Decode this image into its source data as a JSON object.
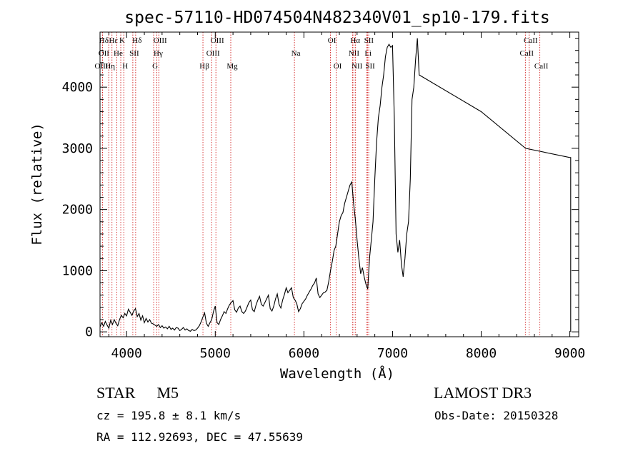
{
  "chart_data": {
    "type": "line",
    "title": "spec-57110-HD074504N482340V01_sp10-179.fits",
    "xlabel": "Wavelength (Å)",
    "ylabel": "Flux (relative)",
    "xlim": [
      3700,
      9100
    ],
    "ylim": [
      -80,
      4900
    ],
    "x_ticks": [
      4000,
      5000,
      6000,
      7000,
      8000,
      9000
    ],
    "x_tick_labels": [
      "4000",
      "5000",
      "6000",
      "7000",
      "8000",
      "9000"
    ],
    "y_ticks": [
      0,
      1000,
      2000,
      3000,
      4000
    ],
    "y_tick_labels": [
      "0",
      "1000",
      "2000",
      "3000",
      "4000"
    ],
    "series": [
      {
        "name": "flux",
        "color": "#000000",
        "x": [
          3700,
          3720,
          3740,
          3760,
          3780,
          3800,
          3820,
          3840,
          3860,
          3880,
          3900,
          3920,
          3940,
          3960,
          3980,
          4000,
          4020,
          4040,
          4060,
          4080,
          4100,
          4120,
          4140,
          4160,
          4180,
          4200,
          4220,
          4240,
          4260,
          4280,
          4300,
          4320,
          4340,
          4360,
          4380,
          4400,
          4420,
          4440,
          4460,
          4480,
          4500,
          4520,
          4540,
          4560,
          4580,
          4600,
          4620,
          4640,
          4660,
          4680,
          4700,
          4720,
          4740,
          4760,
          4780,
          4800,
          4820,
          4840,
          4860,
          4880,
          4900,
          4920,
          4940,
          4960,
          4980,
          5000,
          5020,
          5040,
          5060,
          5080,
          5100,
          5120,
          5140,
          5160,
          5180,
          5200,
          5220,
          5240,
          5260,
          5280,
          5300,
          5320,
          5340,
          5360,
          5380,
          5400,
          5420,
          5440,
          5460,
          5480,
          5500,
          5520,
          5540,
          5560,
          5580,
          5600,
          5620,
          5640,
          5660,
          5680,
          5700,
          5720,
          5740,
          5760,
          5780,
          5800,
          5820,
          5840,
          5860,
          5880,
          5900,
          5920,
          5940,
          5960,
          5980,
          6000,
          6020,
          6040,
          6060,
          6080,
          6100,
          6120,
          6140,
          6160,
          6180,
          6200,
          6220,
          6240,
          6260,
          6280,
          6300,
          6320,
          6340,
          6360,
          6380,
          6400,
          6420,
          6440,
          6460,
          6480,
          6500,
          6520,
          6540,
          6560,
          6580,
          6600,
          6620,
          6640,
          6660,
          6680,
          6700,
          6720,
          6740,
          6760,
          6780,
          6800,
          6820,
          6840,
          6860,
          6880,
          6900,
          6920,
          6940,
          6960,
          6980,
          7000,
          7020,
          7040,
          7060,
          7080,
          7100,
          7120,
          7140,
          7160,
          7180,
          7200,
          7220,
          7240,
          7260,
          7280,
          7300,
          8000,
          8500,
          9000,
          9010,
          9010
        ],
        "y": [
          80,
          150,
          90,
          170,
          110,
          60,
          190,
          120,
          200,
          140,
          100,
          200,
          270,
          230,
          300,
          260,
          370,
          320,
          270,
          340,
          380,
          250,
          300,
          190,
          260,
          150,
          220,
          160,
          200,
          140,
          130,
          110,
          90,
          120,
          70,
          100,
          60,
          80,
          50,
          90,
          40,
          60,
          30,
          70,
          60,
          20,
          40,
          70,
          30,
          50,
          20,
          10,
          40,
          20,
          30,
          60,
          100,
          160,
          240,
          310,
          140,
          90,
          150,
          200,
          330,
          420,
          150,
          120,
          200,
          260,
          330,
          300,
          380,
          440,
          480,
          510,
          360,
          320,
          390,
          420,
          330,
          300,
          340,
          410,
          480,
          520,
          360,
          330,
          440,
          520,
          580,
          450,
          420,
          480,
          540,
          600,
          380,
          340,
          420,
          540,
          620,
          450,
          390,
          520,
          610,
          720,
          640,
          680,
          720,
          560,
          520,
          460,
          330,
          380,
          460,
          500,
          540,
          600,
          650,
          700,
          760,
          800,
          880,
          620,
          560,
          600,
          640,
          650,
          680,
          820,
          1000,
          1150,
          1330,
          1400,
          1600,
          1800,
          1900,
          1950,
          2100,
          2200,
          2300,
          2400,
          2450,
          2100,
          1850,
          1500,
          1200,
          950,
          1050,
          900,
          780,
          700,
          1200,
          1500,
          1800,
          2500,
          3100,
          3500,
          3700,
          4000,
          4200,
          4500,
          4650,
          4700,
          4650,
          4680,
          3500,
          1600,
          1300,
          1500,
          1100,
          900,
          1200,
          1600,
          1800,
          2500,
          3800,
          4000,
          4450,
          4800,
          4200,
          3600,
          3000,
          2850,
          2850,
          0
        ]
      }
    ],
    "line_marks": [
      {
        "label": "Hδ",
        "x": 3727,
        "row": 0
      },
      {
        "label": "Hε",
        "x": 3835,
        "row": 0
      },
      {
        "label": "K",
        "x": 3934,
        "row": 0
      },
      {
        "label": "Hδ",
        "x": 4102,
        "row": 0
      },
      {
        "label": "OIII",
        "x": 4363,
        "row": 0
      },
      {
        "label": "OIII",
        "x": 5007,
        "row": 0
      },
      {
        "label": "OI",
        "x": 6300,
        "row": 0
      },
      {
        "label": "Hα",
        "x": 6563,
        "row": 0
      },
      {
        "label": "SII",
        "x": 6717,
        "row": 0
      },
      {
        "label": "CaII",
        "x": 8542,
        "row": 0
      },
      {
        "label": "OII",
        "x": 3727,
        "row": 1
      },
      {
        "label": "He",
        "x": 3889,
        "row": 1
      },
      {
        "label": "SII",
        "x": 4070,
        "row": 1
      },
      {
        "label": "Hγ",
        "x": 4340,
        "row": 1
      },
      {
        "label": "OIII",
        "x": 4959,
        "row": 1
      },
      {
        "label": "Na",
        "x": 5893,
        "row": 1
      },
      {
        "label": "NII",
        "x": 6548,
        "row": 1
      },
      {
        "label": "Li",
        "x": 6708,
        "row": 1
      },
      {
        "label": "CaII",
        "x": 8498,
        "row": 1
      },
      {
        "label": "OIII",
        "x": 3700,
        "row": 2
      },
      {
        "label": "Hη",
        "x": 3798,
        "row": 2
      },
      {
        "label": "H",
        "x": 3968,
        "row": 2
      },
      {
        "label": "G",
        "x": 4305,
        "row": 2
      },
      {
        "label": "Hβ",
        "x": 4861,
        "row": 2
      },
      {
        "label": "Mg",
        "x": 5175,
        "row": 2
      },
      {
        "label": "OI",
        "x": 6364,
        "row": 2
      },
      {
        "label": "NII",
        "x": 6583,
        "row": 2
      },
      {
        "label": "SII",
        "x": 6731,
        "row": 2
      },
      {
        "label": "CaII",
        "x": 8662,
        "row": 2
      }
    ],
    "line_color": "#cc0000"
  },
  "info": {
    "object_class": "STAR",
    "subclass": "M5",
    "survey": "LAMOST DR3",
    "cz": "cz = 195.8 ± 8.1 km/s",
    "obs_date": "Obs-Date: 20150328",
    "coords": "RA = 112.92693, DEC =  47.55639"
  }
}
